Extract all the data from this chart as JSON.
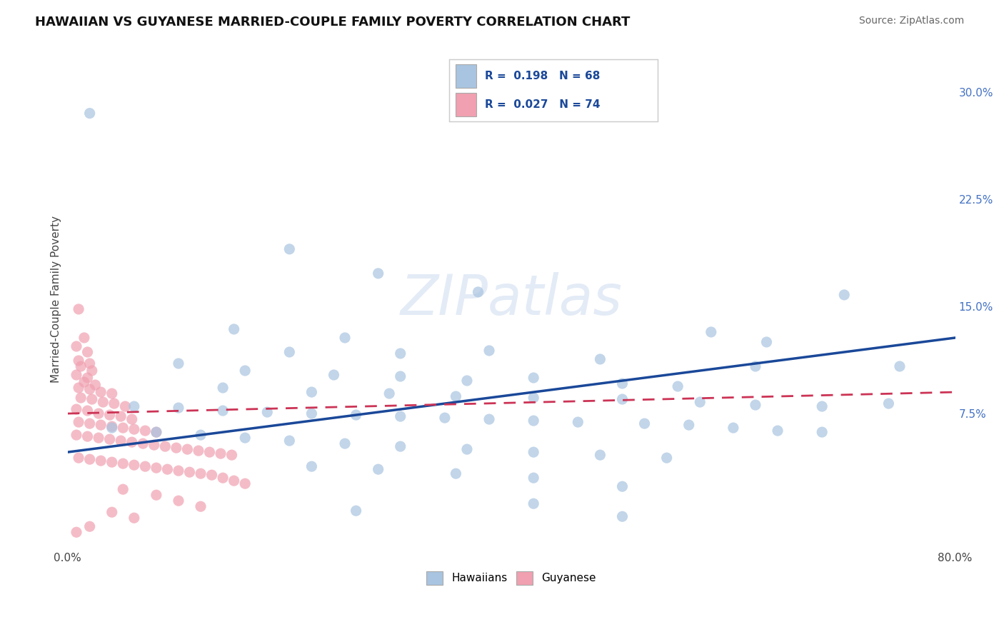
{
  "title": "HAWAIIAN VS GUYANESE MARRIED-COUPLE FAMILY POVERTY CORRELATION CHART",
  "source": "Source: ZipAtlas.com",
  "ylabel": "Married-Couple Family Poverty",
  "xlim": [
    0.0,
    0.8
  ],
  "ylim": [
    -0.02,
    0.33
  ],
  "xticks": [
    0.0,
    0.8
  ],
  "xticklabels": [
    "0.0%",
    "80.0%"
  ],
  "yticks_right": [
    0.075,
    0.15,
    0.225,
    0.3
  ],
  "yticklabels_right": [
    "7.5%",
    "15.0%",
    "22.5%",
    "30.0%"
  ],
  "hawaiian_color": "#a8c4e0",
  "guyanese_color": "#f0a0b0",
  "hawaiian_line_color": "#1a4899",
  "guyanese_line_color": "#cc3355",
  "guyanese_line_dash": [
    6,
    4
  ],
  "R_hawaiian": 0.198,
  "N_hawaiian": 68,
  "R_guyanese": 0.027,
  "N_guyanese": 74,
  "background_color": "#ffffff",
  "grid_color": "#c8c8c8",
  "watermark": "ZIPatlas",
  "hawaiian_scatter": [
    [
      0.02,
      0.285
    ],
    [
      0.2,
      0.19
    ],
    [
      0.28,
      0.173
    ],
    [
      0.37,
      0.16
    ],
    [
      0.7,
      0.158
    ],
    [
      0.15,
      0.134
    ],
    [
      0.25,
      0.128
    ],
    [
      0.58,
      0.132
    ],
    [
      0.63,
      0.125
    ],
    [
      0.2,
      0.118
    ],
    [
      0.3,
      0.117
    ],
    [
      0.38,
      0.119
    ],
    [
      0.48,
      0.113
    ],
    [
      0.62,
      0.108
    ],
    [
      0.75,
      0.108
    ],
    [
      0.1,
      0.11
    ],
    [
      0.16,
      0.105
    ],
    [
      0.24,
      0.102
    ],
    [
      0.3,
      0.101
    ],
    [
      0.36,
      0.098
    ],
    [
      0.42,
      0.1
    ],
    [
      0.5,
      0.096
    ],
    [
      0.55,
      0.094
    ],
    [
      0.14,
      0.093
    ],
    [
      0.22,
      0.09
    ],
    [
      0.29,
      0.089
    ],
    [
      0.35,
      0.087
    ],
    [
      0.42,
      0.086
    ],
    [
      0.5,
      0.085
    ],
    [
      0.57,
      0.083
    ],
    [
      0.62,
      0.081
    ],
    [
      0.68,
      0.08
    ],
    [
      0.74,
      0.082
    ],
    [
      0.06,
      0.08
    ],
    [
      0.1,
      0.079
    ],
    [
      0.14,
      0.077
    ],
    [
      0.18,
      0.076
    ],
    [
      0.22,
      0.075
    ],
    [
      0.26,
      0.074
    ],
    [
      0.3,
      0.073
    ],
    [
      0.34,
      0.072
    ],
    [
      0.38,
      0.071
    ],
    [
      0.42,
      0.07
    ],
    [
      0.46,
      0.069
    ],
    [
      0.52,
      0.068
    ],
    [
      0.56,
      0.067
    ],
    [
      0.6,
      0.065
    ],
    [
      0.64,
      0.063
    ],
    [
      0.68,
      0.062
    ],
    [
      0.04,
      0.065
    ],
    [
      0.08,
      0.062
    ],
    [
      0.12,
      0.06
    ],
    [
      0.16,
      0.058
    ],
    [
      0.2,
      0.056
    ],
    [
      0.25,
      0.054
    ],
    [
      0.3,
      0.052
    ],
    [
      0.36,
      0.05
    ],
    [
      0.42,
      0.048
    ],
    [
      0.48,
      0.046
    ],
    [
      0.54,
      0.044
    ],
    [
      0.22,
      0.038
    ],
    [
      0.28,
      0.036
    ],
    [
      0.35,
      0.033
    ],
    [
      0.42,
      0.03
    ],
    [
      0.5,
      0.024
    ],
    [
      0.42,
      0.012
    ],
    [
      0.26,
      0.007
    ],
    [
      0.5,
      0.003
    ]
  ],
  "guyanese_scatter": [
    [
      0.01,
      0.148
    ],
    [
      0.015,
      0.128
    ],
    [
      0.008,
      0.122
    ],
    [
      0.018,
      0.118
    ],
    [
      0.01,
      0.112
    ],
    [
      0.02,
      0.11
    ],
    [
      0.012,
      0.108
    ],
    [
      0.022,
      0.105
    ],
    [
      0.008,
      0.102
    ],
    [
      0.018,
      0.1
    ],
    [
      0.015,
      0.097
    ],
    [
      0.025,
      0.095
    ],
    [
      0.01,
      0.093
    ],
    [
      0.02,
      0.092
    ],
    [
      0.03,
      0.09
    ],
    [
      0.04,
      0.089
    ],
    [
      0.012,
      0.086
    ],
    [
      0.022,
      0.085
    ],
    [
      0.032,
      0.083
    ],
    [
      0.042,
      0.082
    ],
    [
      0.052,
      0.08
    ],
    [
      0.008,
      0.078
    ],
    [
      0.018,
      0.077
    ],
    [
      0.028,
      0.075
    ],
    [
      0.038,
      0.074
    ],
    [
      0.048,
      0.073
    ],
    [
      0.058,
      0.071
    ],
    [
      0.01,
      0.069
    ],
    [
      0.02,
      0.068
    ],
    [
      0.03,
      0.067
    ],
    [
      0.04,
      0.066
    ],
    [
      0.05,
      0.065
    ],
    [
      0.06,
      0.064
    ],
    [
      0.07,
      0.063
    ],
    [
      0.08,
      0.062
    ],
    [
      0.008,
      0.06
    ],
    [
      0.018,
      0.059
    ],
    [
      0.028,
      0.058
    ],
    [
      0.038,
      0.057
    ],
    [
      0.048,
      0.056
    ],
    [
      0.058,
      0.055
    ],
    [
      0.068,
      0.054
    ],
    [
      0.078,
      0.053
    ],
    [
      0.088,
      0.052
    ],
    [
      0.098,
      0.051
    ],
    [
      0.108,
      0.05
    ],
    [
      0.118,
      0.049
    ],
    [
      0.128,
      0.048
    ],
    [
      0.138,
      0.047
    ],
    [
      0.148,
      0.046
    ],
    [
      0.01,
      0.044
    ],
    [
      0.02,
      0.043
    ],
    [
      0.03,
      0.042
    ],
    [
      0.04,
      0.041
    ],
    [
      0.05,
      0.04
    ],
    [
      0.06,
      0.039
    ],
    [
      0.07,
      0.038
    ],
    [
      0.08,
      0.037
    ],
    [
      0.09,
      0.036
    ],
    [
      0.1,
      0.035
    ],
    [
      0.11,
      0.034
    ],
    [
      0.12,
      0.033
    ],
    [
      0.13,
      0.032
    ],
    [
      0.14,
      0.03
    ],
    [
      0.15,
      0.028
    ],
    [
      0.16,
      0.026
    ],
    [
      0.05,
      0.022
    ],
    [
      0.08,
      0.018
    ],
    [
      0.1,
      0.014
    ],
    [
      0.12,
      0.01
    ],
    [
      0.04,
      0.006
    ],
    [
      0.06,
      0.002
    ],
    [
      0.02,
      -0.004
    ],
    [
      0.008,
      -0.008
    ]
  ]
}
